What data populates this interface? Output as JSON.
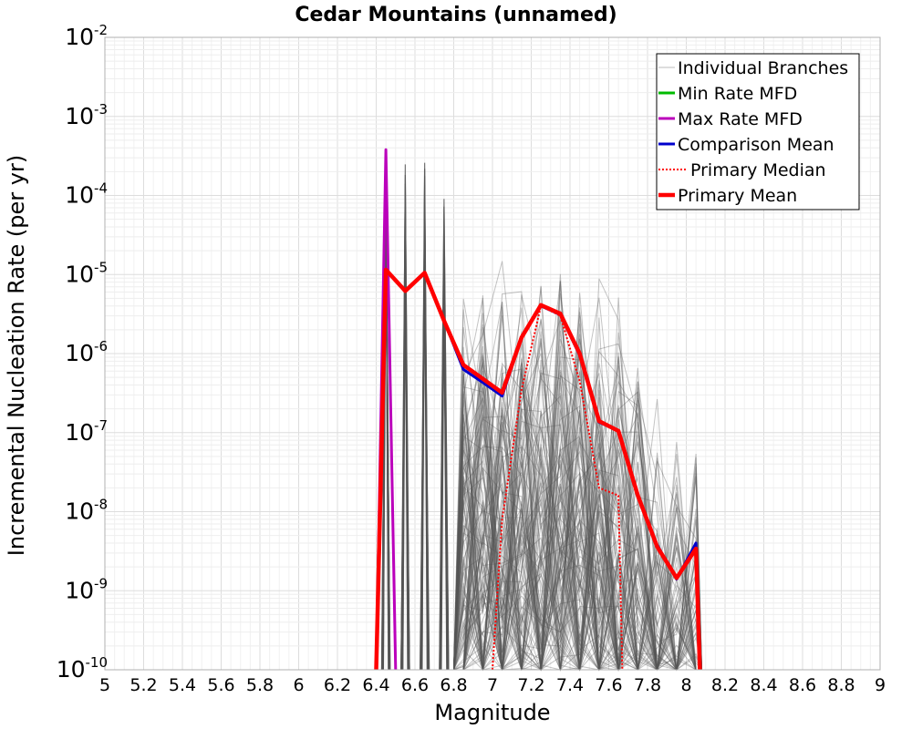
{
  "chart_data": {
    "type": "line",
    "title": "Cedar Mountains (unnamed)",
    "xlabel": "Magnitude",
    "ylabel": "Incremental Nucleation Rate (per yr)",
    "xlim": [
      5,
      9
    ],
    "ylim": [
      1e-10,
      0.01
    ],
    "yscale": "log",
    "grid": true,
    "legend_position": "top-right",
    "x_ticks": [
      "5",
      "5.2",
      "5.4",
      "5.6",
      "5.8",
      "6",
      "6.2",
      "6.4",
      "6.6",
      "6.8",
      "7",
      "7.2",
      "7.4",
      "7.6",
      "7.8",
      "8",
      "8.2",
      "8.4",
      "8.6",
      "8.8",
      "9"
    ],
    "y_ticks": [
      {
        "base": "10",
        "exp": "-10",
        "value": 1e-10
      },
      {
        "base": "10",
        "exp": "-9",
        "value": 1e-09
      },
      {
        "base": "10",
        "exp": "-8",
        "value": 1e-08
      },
      {
        "base": "10",
        "exp": "-7",
        "value": 1e-07
      },
      {
        "base": "10",
        "exp": "-6",
        "value": 1e-06
      },
      {
        "base": "10",
        "exp": "-5",
        "value": 1e-05
      },
      {
        "base": "10",
        "exp": "-4",
        "value": 0.0001
      },
      {
        "base": "10",
        "exp": "-3",
        "value": 0.001
      },
      {
        "base": "10",
        "exp": "-2",
        "value": 0.01
      }
    ],
    "series": [
      {
        "name": "Individual Branches",
        "color": "#555555",
        "style": "thin-band",
        "x": [
          6.45,
          6.55,
          6.65,
          6.75,
          6.85,
          6.95,
          7.05,
          7.15,
          7.25,
          7.35,
          7.45,
          7.55,
          7.65,
          7.75,
          7.85,
          7.95,
          8.05
        ],
        "upper": [
          0.00038,
          0.00026,
          0.00026,
          0.00013,
          1.5e-05,
          1.5e-05,
          1.6e-05,
          2e-05,
          1.9e-05,
          1.8e-05,
          1.6e-05,
          1e-05,
          6e-06,
          2e-06,
          3e-07,
          1.5e-07,
          2.2e-07
        ]
      },
      {
        "name": "Min Rate MFD",
        "color": "#00bb00",
        "style": "solid",
        "x": [],
        "values": []
      },
      {
        "name": "Max Rate MFD",
        "color": "#bb00bb",
        "style": "solid",
        "x": [
          6.4,
          6.45,
          6.5
        ],
        "values": [
          1e-10,
          0.00038,
          1e-10
        ]
      },
      {
        "name": "Comparison Mean",
        "color": "#0000cc",
        "style": "solid",
        "x": [
          6.4,
          6.45,
          6.55,
          6.65,
          6.75,
          6.85,
          6.95,
          7.05,
          7.15,
          7.25,
          7.35,
          7.45,
          7.55,
          7.65,
          7.75,
          7.85,
          7.95,
          8.05,
          8.07
        ],
        "values": [
          1e-10,
          1.15e-05,
          6.2e-06,
          1.05e-05,
          2.6e-06,
          6.3e-07,
          4.3e-07,
          2.9e-07,
          1.6e-06,
          4e-06,
          3.1e-06,
          9.5e-07,
          1.35e-07,
          1.05e-07,
          1.55e-08,
          3.8e-09,
          1.4e-09,
          4e-09,
          1e-10
        ]
      },
      {
        "name": "Primary Median",
        "color": "#ff0000",
        "style": "dotted",
        "x": [
          7.0,
          7.05,
          7.15,
          7.25,
          7.35,
          7.45,
          7.55,
          7.65,
          7.67
        ],
        "values": [
          1e-10,
          8e-09,
          3.5e-07,
          4e-06,
          3e-06,
          4.5e-07,
          2e-08,
          1.6e-08,
          1e-10
        ]
      },
      {
        "name": "Primary Mean",
        "color": "#ff0000",
        "style": "thick",
        "x": [
          6.4,
          6.45,
          6.55,
          6.65,
          6.75,
          6.85,
          6.95,
          7.05,
          7.15,
          7.25,
          7.35,
          7.45,
          7.55,
          7.65,
          7.75,
          7.85,
          7.95,
          8.05,
          8.07
        ],
        "values": [
          1e-10,
          1.15e-05,
          6.2e-06,
          1.05e-05,
          2.6e-06,
          7.2e-07,
          4.8e-07,
          3.2e-07,
          1.6e-06,
          4.1e-06,
          3.2e-06,
          1e-06,
          1.4e-07,
          1.05e-07,
          1.6e-08,
          3.6e-09,
          1.45e-09,
          3.4e-09,
          1e-10
        ]
      }
    ]
  }
}
